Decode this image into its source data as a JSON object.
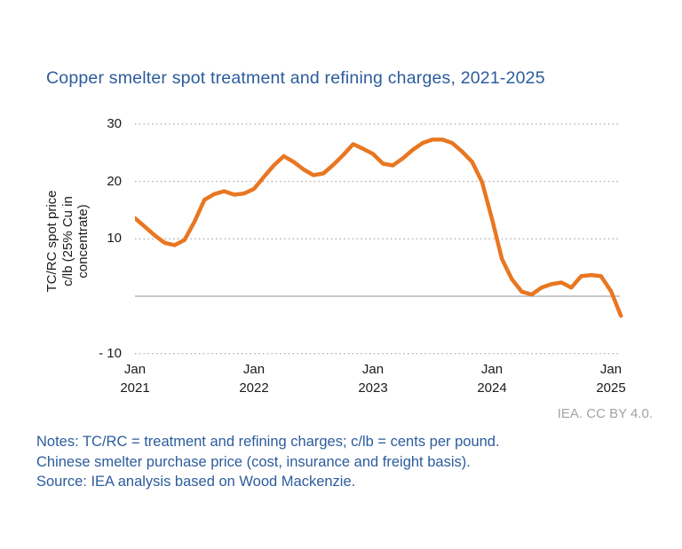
{
  "header": {
    "title": "Copper smelter spot treatment and refining charges, 2021-2025"
  },
  "footer": {
    "credit": "IEA. CC BY 4.0.",
    "notes": [
      "Notes: TC/RC = treatment and refining charges; c/lb = cents per pound.",
      "Chinese smelter purchase price (cost, insurance and freight basis).",
      "Source: IEA analysis based on Wood Mackenzie."
    ]
  },
  "colors": {
    "line_orange": "#E87722",
    "title_blue": "#2C5C9C",
    "notes_blue": "#2C5C9C",
    "credit_gray": "#A3A3A3",
    "grid_gray": "#ABABAB",
    "zero_line_gray": "#A9A9A9",
    "tick_text": "#1A1A1A"
  },
  "chart_data": {
    "type": "line",
    "title": "Copper smelter spot treatment and refining charges, 2021-2025",
    "ylabel_lines": [
      "TC/RC spot price",
      "c/lb (25% Cu in",
      "concentrate)"
    ],
    "ylabel": "TC/RC spot price c/lb (25% Cu in concentrate)",
    "xlabel": "",
    "legend": "none",
    "grid": "dotted horizontal gridlines; solid line at zero",
    "ylim": [
      -13.5,
      32
    ],
    "yticks": [
      {
        "value": 30,
        "label": "30"
      },
      {
        "value": 20,
        "label": "20"
      },
      {
        "value": 10,
        "label": "10"
      },
      {
        "value": -10,
        "label": "- 10"
      }
    ],
    "zero_line_value": 0,
    "xticks": [
      {
        "month_index": 0,
        "line1": "Jan",
        "line2": "2021"
      },
      {
        "month_index": 12,
        "line1": "Jan",
        "line2": "2022"
      },
      {
        "month_index": 24,
        "line1": "Jan",
        "line2": "2023"
      },
      {
        "month_index": 36,
        "line1": "Jan",
        "line2": "2024"
      },
      {
        "month_index": 48,
        "line1": "Jan",
        "line2": "2025"
      }
    ],
    "series": [
      {
        "name": "TC/RC spot price (c/lb, 25% Cu in concentrate)",
        "x_unit": "months since Jan 2021",
        "x": [
          0,
          1,
          2,
          3,
          4,
          5,
          6,
          7,
          8,
          9,
          10,
          11,
          12,
          13,
          14,
          15,
          16,
          17,
          18,
          19,
          20,
          21,
          22,
          23,
          24,
          25,
          26,
          27,
          28,
          29,
          30,
          31,
          32,
          33,
          34,
          35,
          36,
          37,
          38,
          39,
          40,
          41,
          42,
          43,
          44,
          45,
          46,
          47,
          48,
          49
        ],
        "values": [
          13.6,
          12.1,
          10.6,
          9.3,
          8.9,
          9.8,
          13.0,
          16.8,
          17.8,
          18.3,
          17.7,
          17.9,
          18.7,
          20.8,
          22.8,
          24.4,
          23.4,
          22.1,
          21.1,
          21.4,
          22.9,
          24.6,
          26.5,
          25.7,
          24.8,
          23.1,
          22.8,
          24.0,
          25.5,
          26.7,
          27.3,
          27.3,
          26.7,
          25.2,
          23.4,
          19.9,
          13.5,
          6.5,
          3.0,
          0.8,
          0.3,
          1.5,
          2.1,
          2.4,
          1.5,
          3.5,
          3.7,
          3.5,
          0.9,
          -3.4
        ]
      }
    ]
  }
}
